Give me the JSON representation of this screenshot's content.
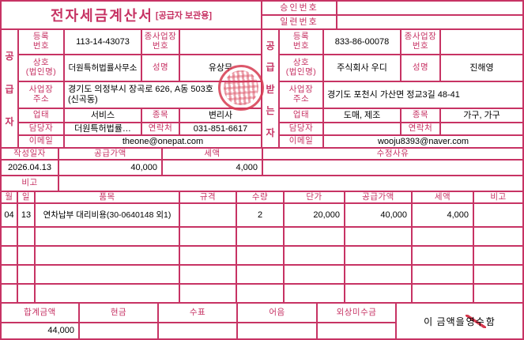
{
  "colors": {
    "accent": "#c73364",
    "seal": "#d6394e"
  },
  "title": {
    "main": "전자세금계산서",
    "sub": "[공급자 보관용]"
  },
  "approval": {
    "approval_label": "승인번호",
    "approval_value": "",
    "serial_label": "일련번호",
    "serial_value": ""
  },
  "supplier": {
    "vertical": [
      "공",
      "급",
      "자"
    ],
    "reg_label": "등록\n번호",
    "reg_value": "113-14-43073",
    "subbiz_label": "종사업장\n번호",
    "subbiz_value": "",
    "name_label": "상호\n(법인명)",
    "name_value": "더원특허법률사무소",
    "ceo_label": "성명",
    "ceo_value": "유상무",
    "addr_label": "사업장\n주소",
    "addr_value": "경기도 의정부시 장곡로 626, A동 503호\n(신곡동)",
    "type_label": "업태",
    "type_value": "서비스",
    "item_label": "종목",
    "item_value": "변리사",
    "contact_label": "담당자",
    "contact_value": "더원특허법률…",
    "phone_label": "연락처",
    "phone_value": "031-851-6617",
    "email_label": "이메일",
    "email_value": "theone@onepat.com"
  },
  "buyer": {
    "vertical": [
      "공",
      "급",
      "받",
      "는",
      "자"
    ],
    "reg_label": "등록\n번호",
    "reg_value": "833-86-00078",
    "subbiz_label": "종사업장\n번호",
    "subbiz_value": "",
    "name_label": "상호\n(법인명)",
    "name_value": "주식회사 우디",
    "ceo_label": "성명",
    "ceo_value": "진해영",
    "addr_label": "사업장\n주소",
    "addr_value": "경기도 포천시 가산면 정교3길 48-41",
    "type_label": "업태",
    "type_value": "도매, 제조",
    "item_label": "종목",
    "item_value": "가구, 가구",
    "contact_label": "담당자",
    "contact_value": "",
    "phone_label": "연락처",
    "phone_value": "",
    "email_label": "이메일",
    "email_value": "wooju8393@naver.com"
  },
  "summary": {
    "date_label": "작성일자",
    "date_value": "2026.04.13",
    "supply_label": "공급가액",
    "supply_value": "40,000",
    "tax_label": "세액",
    "tax_value": "4,000",
    "reason_label": "수정사유",
    "reason_value": "",
    "note_label": "비고",
    "note_value": ""
  },
  "items": {
    "headers": {
      "month": "월",
      "day": "일",
      "name": "품목",
      "spec": "규격",
      "qty": "수량",
      "unit_price": "단가",
      "supply": "공급가액",
      "tax": "세액",
      "note": "비고"
    },
    "rows": [
      {
        "month": "04",
        "day": "13",
        "name": "연차납부 대리비용(30-0640148 외1)",
        "spec": "",
        "qty": "2",
        "unit_price": "20,000",
        "supply": "40,000",
        "tax": "4,000",
        "note": ""
      }
    ]
  },
  "total": {
    "total_label": "합계금액",
    "total_value": "44,000",
    "cash_label": "현금",
    "cash_value": "",
    "check_label": "수표",
    "check_value": "",
    "bill_label": "어음",
    "bill_value": "",
    "credit_label": "외상미수금",
    "credit_value": "",
    "statement_prefix": "이 금액을 ",
    "statement_word": "영수",
    "statement_suffix": "함"
  }
}
